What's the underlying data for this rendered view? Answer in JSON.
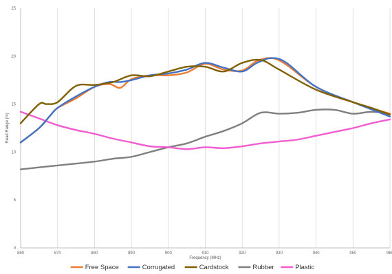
{
  "chart_data": {
    "type": "line",
    "xlabel": "Frequency (MHz)",
    "ylabel": "Read Range (m)",
    "xlim": [
      860,
      960
    ],
    "ylim": [
      0,
      25
    ],
    "xticks": [
      860,
      870,
      880,
      890,
      900,
      910,
      920,
      930,
      940,
      950,
      960
    ],
    "yticks": [
      0,
      5,
      10,
      15,
      20,
      25
    ],
    "grid": "vertical",
    "legend_position": "bottom",
    "series": [
      {
        "name": "Free Space",
        "color": "#ED7D31",
        "x": [
          860,
          865,
          868,
          870,
          875,
          880,
          884,
          887,
          890,
          895,
          900,
          905,
          910,
          915,
          920,
          924,
          928,
          932,
          940,
          950,
          960
        ],
        "y": [
          11.0,
          12.5,
          13.8,
          14.6,
          15.6,
          16.8,
          17.1,
          16.7,
          17.6,
          18.0,
          18.0,
          18.3,
          19.2,
          18.6,
          18.5,
          19.5,
          19.8,
          19.1,
          16.8,
          15.2,
          14.0
        ]
      },
      {
        "name": "Corrugated",
        "color": "#4472C4",
        "x": [
          860,
          865,
          868,
          870,
          875,
          880,
          884,
          887,
          890,
          895,
          900,
          905,
          910,
          915,
          920,
          924,
          928,
          932,
          940,
          950,
          960
        ],
        "y": [
          11.0,
          12.5,
          13.8,
          14.6,
          15.8,
          16.8,
          17.3,
          17.3,
          17.5,
          18.0,
          18.2,
          18.6,
          19.3,
          18.8,
          18.4,
          19.3,
          19.8,
          19.3,
          16.8,
          15.2,
          13.7
        ]
      },
      {
        "name": "Cardstock",
        "color": "#806000",
        "x": [
          860,
          865,
          867,
          870,
          875,
          880,
          885,
          890,
          895,
          900,
          905,
          910,
          915,
          920,
          925,
          930,
          940,
          950,
          955,
          960
        ],
        "y": [
          13.0,
          15.0,
          15.0,
          15.2,
          16.9,
          17.0,
          17.3,
          18.0,
          17.9,
          18.4,
          18.9,
          18.9,
          18.4,
          19.3,
          19.6,
          18.6,
          16.5,
          15.2,
          14.6,
          13.9
        ]
      },
      {
        "name": "Rubber",
        "color": "#7F7F7F",
        "x": [
          860,
          865,
          870,
          875,
          880,
          885,
          890,
          895,
          900,
          905,
          910,
          915,
          920,
          925,
          930,
          935,
          940,
          945,
          950,
          955,
          960
        ],
        "y": [
          8.2,
          8.4,
          8.6,
          8.8,
          9.0,
          9.3,
          9.5,
          10.0,
          10.5,
          10.9,
          11.6,
          12.2,
          13.0,
          14.1,
          14.0,
          14.1,
          14.4,
          14.4,
          14.0,
          14.2,
          14.0
        ]
      },
      {
        "name": "Plastic",
        "color": "#F25CD0",
        "x": [
          860,
          865,
          870,
          875,
          880,
          885,
          890,
          895,
          900,
          905,
          910,
          915,
          920,
          925,
          930,
          935,
          940,
          945,
          950,
          955,
          960
        ],
        "y": [
          14.2,
          13.5,
          12.8,
          12.3,
          11.9,
          11.4,
          11.0,
          10.6,
          10.5,
          10.3,
          10.5,
          10.4,
          10.6,
          10.9,
          11.1,
          11.3,
          11.7,
          12.1,
          12.5,
          13.0,
          13.4
        ]
      }
    ]
  }
}
